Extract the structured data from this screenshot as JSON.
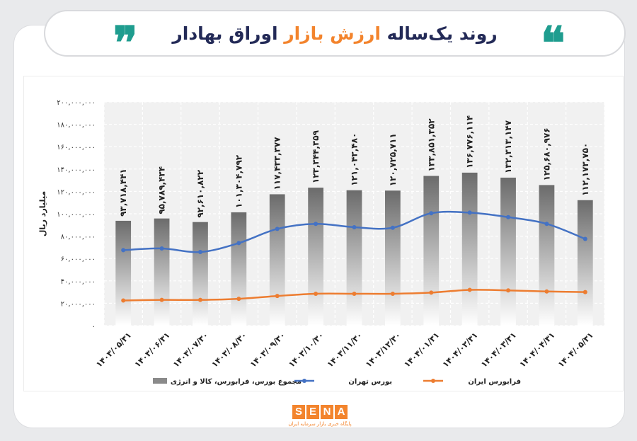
{
  "header": {
    "title_part1": "روند یک‌ساله ",
    "title_highlight": "ارزش بازار",
    "title_part2": " اوراق بهادار",
    "quote_open": "❞",
    "quote_close": "❝",
    "accent_color": "#f3842d",
    "title_color": "#232a57",
    "quote_color": "#1f9d8f"
  },
  "chart_data": {
    "type": "bar",
    "ylabel": "میلیارد ریال",
    "ylim": [
      0,
      200000000
    ],
    "yticks": [
      0,
      20000000,
      40000000,
      60000000,
      80000000,
      100000000,
      120000000,
      140000000,
      160000000,
      180000000,
      200000000
    ],
    "ytick_labels": [
      "۰",
      "۲۰,۰۰۰,۰۰۰",
      "۴۰,۰۰۰,۰۰۰",
      "۶۰,۰۰۰,۰۰۰",
      "۸۰,۰۰۰,۰۰۰",
      "۱۰۰,۰۰۰,۰۰۰",
      "۱۲۰,۰۰۰,۰۰۰",
      "۱۴۰,۰۰۰,۰۰۰",
      "۱۶۰,۰۰۰,۰۰۰",
      "۱۸۰,۰۰۰,۰۰۰",
      "۲۰۰,۰۰۰,۰۰۰"
    ],
    "categories": [
      "۱۴۰۳/۰۵/۳۱",
      "۱۴۰۳/۰۶/۳۱",
      "۱۴۰۳/۰۷/۳۰",
      "۱۴۰۳/۰۸/۳۰",
      "۱۴۰۳/۰۹/۳۰",
      "۱۴۰۳/۱۰/۳۰",
      "۱۴۰۳/۱۱/۳۰",
      "۱۴۰۳/۱۲/۳۰",
      "۱۴۰۴/۰۱/۳۱",
      "۱۴۰۴/۰۲/۳۱",
      "۱۴۰۴/۰۳/۳۱",
      "۱۴۰۴/۰۴/۳۱",
      "۱۴۰۴/۰۵/۳۱"
    ],
    "grid": true,
    "series": [
      {
        "name": "مجموع بورس، فرابورس، کالا و انرژی",
        "kind": "bar",
        "color": "#8a8a8a",
        "values": [
          93718441,
          95789434,
          92610822,
          101304792,
          117433377,
          123344359,
          121043480,
          120725711,
          133851352,
          136776114,
          132313147,
          125680976,
          112173750
        ],
        "labels": [
          "۹۳,۷۱۸,۴۴۱",
          "۹۵,۷۸۹,۴۳۴",
          "۹۲,۶۱۰,۸۲۲",
          "۱۰۱,۳۰۴,۷۹۲",
          "۱۱۷,۴۳۳,۳۷۷",
          "۱۲۳,۳۴۴,۳۵۹",
          "۱۲۱,۰۴۳,۴۸۰",
          "۱۲۰,۷۲۵,۷۱۱",
          "۱۳۳,۸۵۱,۳۵۲",
          "۱۳۶,۷۷۶,۱۱۴",
          "۱۳۲,۳۱۳,۱۴۷",
          "۱۲۵,۶۸۰,۹۷۶",
          "۱۱۲,۱۷۳,۷۵۰"
        ]
      },
      {
        "name": "بورس تهران",
        "kind": "line",
        "color": "#4472c4",
        "values": [
          67500000,
          69000000,
          65800000,
          73800000,
          86500000,
          91000000,
          88000000,
          87500000,
          100500000,
          101000000,
          97000000,
          91000000,
          77500000
        ]
      },
      {
        "name": "فرابورس ایران",
        "kind": "line",
        "color": "#ed7d31",
        "values": [
          22500000,
          23000000,
          23000000,
          24000000,
          26500000,
          28500000,
          28500000,
          28500000,
          29500000,
          32000000,
          31500000,
          30500000,
          30000000
        ]
      }
    ],
    "legend_position": "bottom"
  },
  "footer": {
    "logo_letters": [
      "S",
      "E",
      "N",
      "A"
    ],
    "logo_subtitle": "پایگاه خبری بازار سرمایه ایران"
  }
}
